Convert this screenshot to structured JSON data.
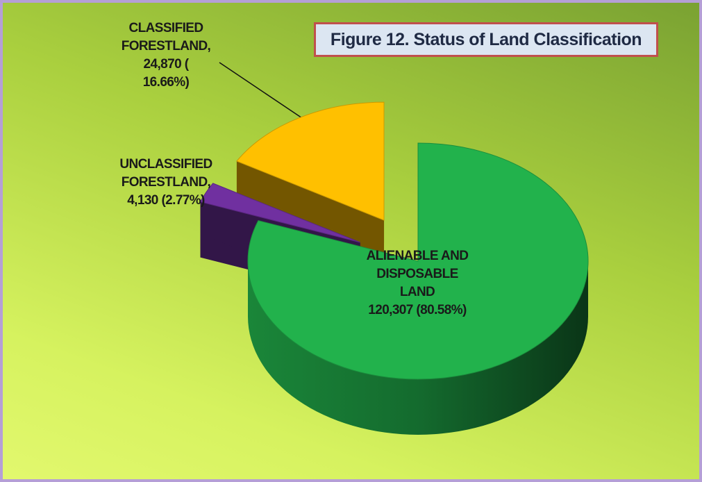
{
  "chart_data": {
    "type": "pie3d",
    "title": "Figure 12. Status of Land Classification",
    "categories": [
      "ALIENABLE AND DISPOSABLE LAND",
      "UNCLASSIFIED FORESTLAND,",
      "CLASSIFIED FORESTLAND,"
    ],
    "values": [
      120307,
      4130,
      24870
    ],
    "value_labels": [
      "120,307 (80.58%)",
      "4,130 (2.77%)",
      "24,870 ( 16.66%)"
    ],
    "colors": [
      "#22b24c",
      "#7030a0",
      "#ffc000"
    ]
  }
}
